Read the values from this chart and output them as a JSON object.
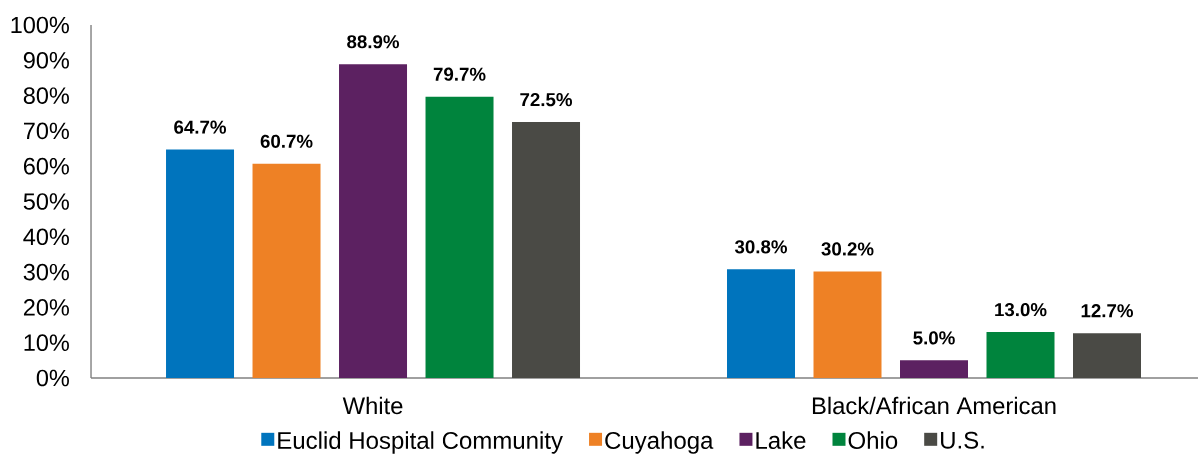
{
  "chart_data": {
    "type": "bar",
    "categories": [
      "White",
      "Black/African American"
    ],
    "series": [
      {
        "name": "Euclid Hospital Community",
        "color": "#0074bd",
        "values": [
          64.7,
          30.8
        ],
        "value_labels": [
          "64.7%",
          "30.8%"
        ]
      },
      {
        "name": "Cuyahoga",
        "color": "#ee8125",
        "values": [
          60.7,
          30.2
        ],
        "value_labels": [
          "60.7%",
          "30.2%"
        ]
      },
      {
        "name": "Lake",
        "color": "#5c2161",
        "values": [
          88.9,
          5.0
        ],
        "value_labels": [
          "88.9%",
          "5.0%"
        ]
      },
      {
        "name": "Ohio",
        "color": "#00843d",
        "values": [
          79.7,
          13.0
        ],
        "value_labels": [
          "79.7%",
          "13.0%"
        ]
      },
      {
        "name": "U.S.",
        "color": "#4a4a45",
        "values": [
          72.5,
          12.7
        ],
        "value_labels": [
          "72.5%",
          "12.7%"
        ]
      }
    ],
    "ylim": [
      0,
      100
    ],
    "yticks": [
      {
        "value": 0,
        "label": "0%"
      },
      {
        "value": 10,
        "label": "10%"
      },
      {
        "value": 20,
        "label": "20%"
      },
      {
        "value": 30,
        "label": "30%"
      },
      {
        "value": 40,
        "label": "40%"
      },
      {
        "value": 50,
        "label": "50%"
      },
      {
        "value": 60,
        "label": "60%"
      },
      {
        "value": 70,
        "label": "70%"
      },
      {
        "value": 80,
        "label": "80%"
      },
      {
        "value": 90,
        "label": "90%"
      },
      {
        "value": 100,
        "label": "100%"
      }
    ],
    "grid": false,
    "legend": "bottom"
  }
}
